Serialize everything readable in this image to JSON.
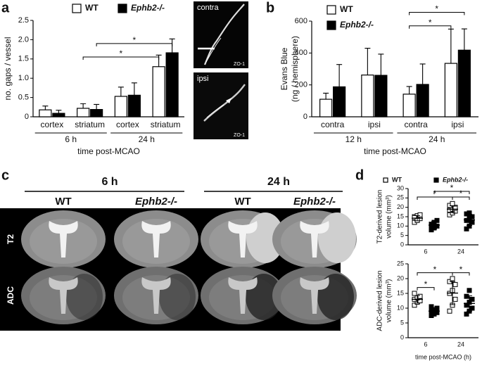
{
  "panel_labels": [
    "a",
    "b",
    "c",
    "d"
  ],
  "micrographs": [
    {
      "region": "contra",
      "stain": "ZO-1"
    },
    {
      "region": "ipsi",
      "stain": "ZO-1"
    }
  ],
  "mri": {
    "times": [
      {
        "label": "6 h",
        "genotypes": [
          "WT",
          "Ephb2-/-"
        ]
      },
      {
        "label": "24 h",
        "genotypes": [
          "WT",
          "Ephb2-/-"
        ]
      }
    ],
    "rows": [
      "T2",
      "ADC"
    ]
  },
  "chart_data": [
    {
      "type": "bar",
      "ylabel": [
        "no. gaps / vessel"
      ],
      "xlabel": "time post-MCAO",
      "groups": [
        "6 h",
        "24 h"
      ],
      "categories": [
        "cortex",
        "striatum",
        "cortex",
        "striatum"
      ],
      "series": [
        {
          "name": "WT",
          "color": "#ffffff",
          "values": [
            0.18,
            0.22,
            0.53,
            1.3
          ],
          "errors": [
            0.1,
            0.12,
            0.24,
            0.3
          ]
        },
        {
          "name": "Ephb2-/-",
          "color": "#000000",
          "values": [
            0.09,
            0.19,
            0.56,
            1.66
          ],
          "errors": [
            0.08,
            0.13,
            0.32,
            0.36
          ]
        }
      ],
      "ylim": [
        0,
        2.5
      ],
      "yticks": [
        0,
        0.5,
        {
          "value": 1,
          "label": "1.0"
        },
        1.5,
        {
          "value": 2,
          "label": "2.0"
        },
        2.5
      ],
      "brackets": [
        {
          "text": "*",
          "y": 1.55,
          "from": [
            1,
            0
          ],
          "to": [
            3,
            0
          ]
        },
        {
          "text": "*",
          "y": 1.9,
          "from": [
            1,
            1
          ],
          "to": [
            3,
            1
          ]
        }
      ],
      "legend": "top"
    },
    {
      "type": "bar",
      "ylabel": [
        "Evans Blue",
        "(ng / hemisphere)"
      ],
      "xlabel": "time post-MCAO",
      "groups": [
        "12 h",
        "24 h"
      ],
      "categories": [
        "contra",
        "ipsi",
        "contra",
        "ipsi"
      ],
      "series": [
        {
          "name": "WT",
          "color": "#ffffff",
          "values": [
            110,
            262,
            142,
            335
          ],
          "errors": [
            38,
            168,
            48,
            215
          ]
        },
        {
          "name": "Ephb2-/-",
          "color": "#000000",
          "values": [
            188,
            260,
            203,
            418
          ],
          "errors": [
            140,
            133,
            128,
            133
          ]
        }
      ],
      "ylim": [
        0,
        600
      ],
      "yticks": [
        0,
        200,
        400,
        600
      ],
      "brackets": [
        {
          "text": "*",
          "y": 570,
          "from": [
            2,
            0
          ],
          "to": [
            3,
            0
          ]
        },
        {
          "text": "*",
          "y": 655,
          "from": [
            2,
            0
          ],
          "to": [
            3,
            1
          ]
        }
      ],
      "legend": "upper left"
    },
    {
      "type": "dotplot",
      "ylabel": [
        "T2-derived lesion",
        "volume (mm³)"
      ],
      "categories": [
        "6",
        "24"
      ],
      "series": [
        {
          "name": "WT",
          "color": "#ffffff",
          "values": [
            [
              12,
              13.5,
              14,
              15,
              15.5,
              16,
              14.5,
              13
            ],
            [
              16,
              17,
              18,
              18.5,
              19,
              20,
              21,
              22,
              19.5
            ]
          ],
          "means": [
            14.2,
            19
          ],
          "sd": [
            1.4,
            1.8
          ]
        },
        {
          "name": "Ephb2-/-",
          "color": "#000000",
          "values": [
            [
              8,
              9,
              10,
              11,
              12,
              13,
              10.5
            ],
            [
              8.5,
              10,
              12,
              13,
              14,
              15,
              16.5,
              17
            ]
          ],
          "means": [
            10.5,
            13.3
          ],
          "sd": [
            2,
            3
          ]
        }
      ],
      "ylim": [
        0,
        30
      ],
      "yticks": [
        0,
        5,
        10,
        15,
        20,
        25,
        30
      ],
      "brackets": [
        {
          "text": "*",
          "y": 28.5,
          "from": [
            0,
            1
          ],
          "to": [
            1,
            1
          ]
        },
        {
          "text": "*",
          "y": 25.5,
          "from": [
            0,
            0
          ],
          "to": [
            1,
            0
          ]
        },
        {
          "text": "*",
          "y": 25.5,
          "from": [
            1,
            0
          ],
          "to": [
            1,
            1
          ]
        }
      ],
      "legend": "top"
    },
    {
      "type": "dotplot",
      "ylabel": [
        "ADC-derived lesion",
        "volume (mm³)"
      ],
      "xlabel": "time post-MCAO (h)",
      "categories": [
        "6",
        "24"
      ],
      "series": [
        {
          "name": "WT",
          "color": "#ffffff",
          "values": [
            [
              11,
              12,
              12.5,
              13,
              13.5,
              14,
              15
            ],
            [
              9,
              11,
              13,
              15,
              16,
              18,
              19,
              20
            ]
          ],
          "means": [
            13,
            15.1
          ],
          "sd": [
            1.3,
            3.9
          ]
        },
        {
          "name": "Ephb2-/-",
          "color": "#000000",
          "values": [
            [
              7.5,
              8,
              8.5,
              9,
              9.5,
              10,
              10.5
            ],
            [
              8,
              9,
              10,
              11,
              12,
              13,
              14,
              16
            ]
          ],
          "means": [
            9,
            11.6
          ],
          "sd": [
            1,
            2.6
          ]
        }
      ],
      "ylim": [
        0,
        25
      ],
      "yticks": [
        0,
        5,
        10,
        15,
        20,
        25
      ],
      "brackets": [
        {
          "text": "*",
          "y": 17,
          "from": [
            0,
            0
          ],
          "to": [
            0,
            1
          ]
        },
        {
          "text": "*",
          "y": 22,
          "from": [
            0,
            0
          ],
          "to": [
            1,
            0
          ]
        },
        {
          "text": "*",
          "y": 22,
          "from": [
            1,
            0
          ],
          "to": [
            1,
            1
          ]
        }
      ]
    }
  ]
}
